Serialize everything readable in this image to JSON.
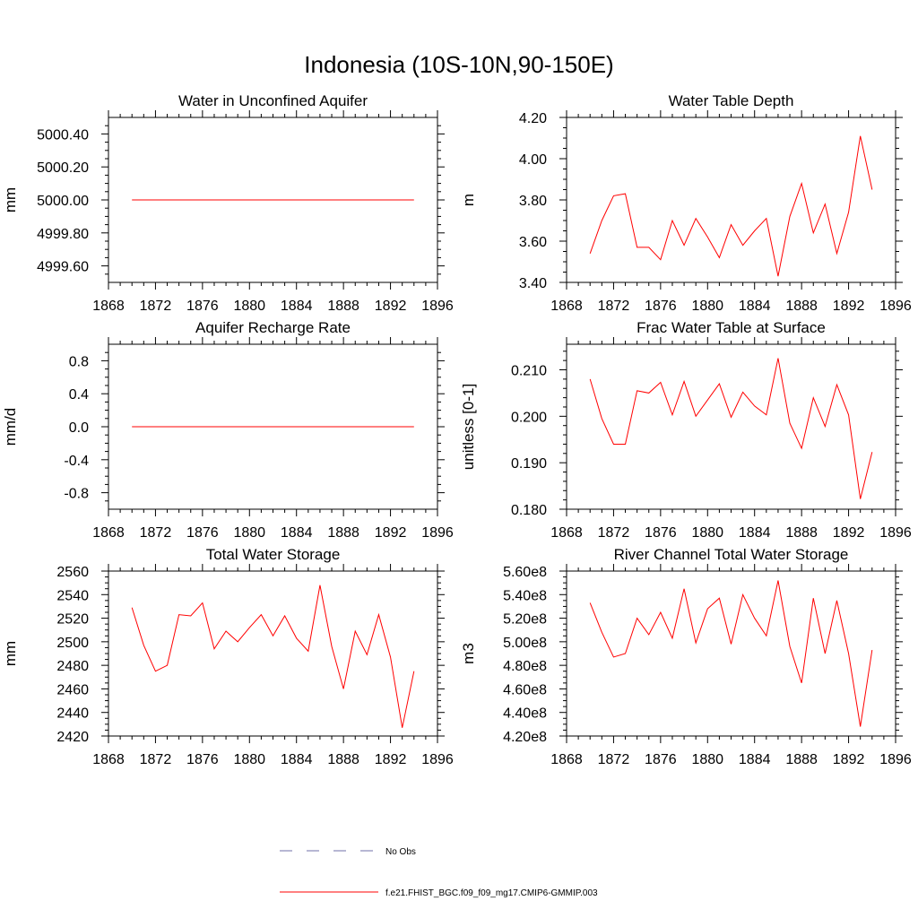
{
  "figure": {
    "title": "Indonesia (10S-10N,90-150E)",
    "series_color": "#ff0000",
    "obs_color": "#6f6fa8"
  },
  "legend": {
    "items": [
      {
        "label": "No Obs",
        "style": "dashed",
        "color": "#6f6fa8"
      },
      {
        "label": "f.e21.FHIST_BGC.f09_f09_mg17.CMIP6-GMMIP.003",
        "style": "solid",
        "color": "#ff0000"
      }
    ]
  },
  "chart_data": [
    {
      "type": "line",
      "title": "Water in Unconfined Aquifer",
      "ylabel": "mm",
      "xlim": [
        1868,
        1896
      ],
      "xticks": [
        1868,
        1872,
        1876,
        1880,
        1884,
        1888,
        1892,
        1896
      ],
      "xtick_labels": [
        "1868",
        "1872",
        "1876",
        "1880",
        "1884",
        "1888",
        "1892",
        "1896"
      ],
      "ylim": [
        4999.5,
        5000.5
      ],
      "yticks": [
        4999.6,
        4999.8,
        5000.0,
        5000.2,
        5000.4
      ],
      "ytick_labels": [
        "4999.60",
        "4999.80",
        "5000.00",
        "5000.20",
        "5000.40"
      ],
      "yminor": [
        4999.55,
        4999.65,
        4999.7,
        4999.75,
        4999.85,
        4999.9,
        4999.95,
        5000.05,
        5000.1,
        5000.15,
        5000.25,
        5000.3,
        5000.35,
        5000.45
      ],
      "x": [
        1870,
        1871,
        1872,
        1873,
        1874,
        1875,
        1876,
        1877,
        1878,
        1879,
        1880,
        1881,
        1882,
        1883,
        1884,
        1885,
        1886,
        1887,
        1888,
        1889,
        1890,
        1891,
        1892,
        1893,
        1894
      ],
      "series": [
        {
          "name": "f.e21.FHIST_BGC.f09_f09_mg17.CMIP6-GMMIP.003",
          "values": [
            5000,
            5000,
            5000,
            5000,
            5000,
            5000,
            5000,
            5000,
            5000,
            5000,
            5000,
            5000,
            5000,
            5000,
            5000,
            5000,
            5000,
            5000,
            5000,
            5000,
            5000,
            5000,
            5000,
            5000,
            5000
          ]
        }
      ]
    },
    {
      "type": "line",
      "title": "Water Table Depth",
      "ylabel": "m",
      "xlim": [
        1868,
        1896
      ],
      "xticks": [
        1868,
        1872,
        1876,
        1880,
        1884,
        1888,
        1892,
        1896
      ],
      "xtick_labels": [
        "1868",
        "1872",
        "1876",
        "1880",
        "1884",
        "1888",
        "1892",
        "1896"
      ],
      "ylim": [
        3.4,
        4.2
      ],
      "yticks": [
        3.4,
        3.6,
        3.8,
        4.0,
        4.2
      ],
      "ytick_labels": [
        "3.40",
        "3.60",
        "3.80",
        "4.00",
        "4.20"
      ],
      "yminor": [
        3.45,
        3.5,
        3.55,
        3.65,
        3.7,
        3.75,
        3.85,
        3.9,
        3.95,
        4.05,
        4.1,
        4.15
      ],
      "x": [
        1870,
        1871,
        1872,
        1873,
        1874,
        1875,
        1876,
        1877,
        1878,
        1879,
        1880,
        1881,
        1882,
        1883,
        1884,
        1885,
        1886,
        1887,
        1888,
        1889,
        1890,
        1891,
        1892,
        1893,
        1894
      ],
      "series": [
        {
          "name": "f.e21.FHIST_BGC.f09_f09_mg17.CMIP6-GMMIP.003",
          "values": [
            3.54,
            3.7,
            3.82,
            3.83,
            3.57,
            3.57,
            3.51,
            3.7,
            3.58,
            3.71,
            3.62,
            3.52,
            3.68,
            3.58,
            3.65,
            3.71,
            3.43,
            3.72,
            3.88,
            3.64,
            3.78,
            3.54,
            3.74,
            4.11,
            3.85
          ]
        }
      ]
    },
    {
      "type": "line",
      "title": "Aquifer Recharge Rate",
      "ylabel": "mm/d",
      "xlim": [
        1868,
        1896
      ],
      "xticks": [
        1868,
        1872,
        1876,
        1880,
        1884,
        1888,
        1892,
        1896
      ],
      "xtick_labels": [
        "1868",
        "1872",
        "1876",
        "1880",
        "1884",
        "1888",
        "1892",
        "1896"
      ],
      "ylim": [
        -1.0,
        1.0
      ],
      "yticks": [
        -0.8,
        -0.4,
        0.0,
        0.4,
        0.8
      ],
      "ytick_labels": [
        "-0.8",
        "-0.4",
        "0.0",
        "0.4",
        "0.8"
      ],
      "yminor": [
        -0.9,
        -0.7,
        -0.6,
        -0.5,
        -0.3,
        -0.2,
        -0.1,
        0.1,
        0.2,
        0.3,
        0.5,
        0.6,
        0.7,
        0.9
      ],
      "x": [
        1870,
        1871,
        1872,
        1873,
        1874,
        1875,
        1876,
        1877,
        1878,
        1879,
        1880,
        1881,
        1882,
        1883,
        1884,
        1885,
        1886,
        1887,
        1888,
        1889,
        1890,
        1891,
        1892,
        1893,
        1894
      ],
      "series": [
        {
          "name": "f.e21.FHIST_BGC.f09_f09_mg17.CMIP6-GMMIP.003",
          "values": [
            0,
            0,
            0,
            0,
            0,
            0,
            0,
            0,
            0,
            0,
            0,
            0,
            0,
            0,
            0,
            0,
            0,
            0,
            0,
            0,
            0,
            0,
            0,
            0,
            0
          ]
        }
      ]
    },
    {
      "type": "line",
      "title": "Frac Water Table at Surface",
      "ylabel": "unitless [0-1]",
      "xlim": [
        1868,
        1896
      ],
      "xticks": [
        1868,
        1872,
        1876,
        1880,
        1884,
        1888,
        1892,
        1896
      ],
      "xtick_labels": [
        "1868",
        "1872",
        "1876",
        "1880",
        "1884",
        "1888",
        "1892",
        "1896"
      ],
      "ylim": [
        0.18,
        0.2155
      ],
      "yticks": [
        0.18,
        0.19,
        0.2,
        0.21
      ],
      "ytick_labels": [
        "0.180",
        "0.190",
        "0.200",
        "0.210"
      ],
      "yminor": [
        0.182,
        0.184,
        0.186,
        0.188,
        0.192,
        0.194,
        0.196,
        0.198,
        0.202,
        0.204,
        0.206,
        0.208,
        0.212,
        0.214
      ],
      "x": [
        1870,
        1871,
        1872,
        1873,
        1874,
        1875,
        1876,
        1877,
        1878,
        1879,
        1880,
        1881,
        1882,
        1883,
        1884,
        1885,
        1886,
        1887,
        1888,
        1889,
        1890,
        1891,
        1892,
        1893,
        1894
      ],
      "series": [
        {
          "name": "f.e21.FHIST_BGC.f09_f09_mg17.CMIP6-GMMIP.003",
          "values": [
            0.208,
            0.1995,
            0.194,
            0.194,
            0.2055,
            0.205,
            0.2073,
            0.2003,
            0.2075,
            0.2,
            0.2035,
            0.207,
            0.1998,
            0.2052,
            0.2022,
            0.2003,
            0.2125,
            0.1985,
            0.1931,
            0.204,
            0.1978,
            0.2068,
            0.2003,
            0.1822,
            0.1923
          ]
        }
      ]
    },
    {
      "type": "line",
      "title": "Total Water Storage",
      "ylabel": "mm",
      "xlim": [
        1868,
        1896
      ],
      "xticks": [
        1868,
        1872,
        1876,
        1880,
        1884,
        1888,
        1892,
        1896
      ],
      "xtick_labels": [
        "1868",
        "1872",
        "1876",
        "1880",
        "1884",
        "1888",
        "1892",
        "1896"
      ],
      "ylim": [
        2420,
        2560
      ],
      "yticks": [
        2420,
        2440,
        2460,
        2480,
        2500,
        2520,
        2540,
        2560
      ],
      "ytick_labels": [
        "2420",
        "2440",
        "2460",
        "2480",
        "2500",
        "2520",
        "2540",
        "2560"
      ],
      "yminor": [
        2425,
        2430,
        2435,
        2445,
        2450,
        2455,
        2465,
        2470,
        2475,
        2485,
        2490,
        2495,
        2505,
        2510,
        2515,
        2525,
        2530,
        2535,
        2545,
        2550,
        2555
      ],
      "x": [
        1870,
        1871,
        1872,
        1873,
        1874,
        1875,
        1876,
        1877,
        1878,
        1879,
        1880,
        1881,
        1882,
        1883,
        1884,
        1885,
        1886,
        1887,
        1888,
        1889,
        1890,
        1891,
        1892,
        1893,
        1894
      ],
      "series": [
        {
          "name": "f.e21.FHIST_BGC.f09_f09_mg17.CMIP6-GMMIP.003",
          "values": [
            2529,
            2497,
            2475,
            2480,
            2523,
            2522,
            2533,
            2494,
            2509,
            2500,
            2512,
            2523,
            2505,
            2522,
            2503,
            2492,
            2548,
            2496,
            2460,
            2509,
            2489,
            2523,
            2487,
            2427,
            2475
          ]
        }
      ]
    },
    {
      "type": "line",
      "title": "River Channel Total Water Storage",
      "ylabel": "m3",
      "xlim": [
        1868,
        1896
      ],
      "xticks": [
        1868,
        1872,
        1876,
        1880,
        1884,
        1888,
        1892,
        1896
      ],
      "xtick_labels": [
        "1868",
        "1872",
        "1876",
        "1880",
        "1884",
        "1888",
        "1892",
        "1896"
      ],
      "ylim": [
        420000000,
        560000000
      ],
      "yticks": [
        420000000,
        440000000,
        460000000,
        480000000,
        500000000,
        520000000,
        540000000,
        560000000
      ],
      "ytick_labels": [
        "4.20e8",
        "4.40e8",
        "4.60e8",
        "4.80e8",
        "5.00e8",
        "5.20e8",
        "5.40e8",
        "5.60e8"
      ],
      "yminor": [
        425000000,
        430000000,
        435000000,
        445000000,
        450000000,
        455000000,
        465000000,
        470000000,
        475000000,
        485000000,
        490000000,
        495000000,
        505000000,
        510000000,
        515000000,
        525000000,
        530000000,
        535000000,
        545000000,
        550000000,
        555000000
      ],
      "x": [
        1870,
        1871,
        1872,
        1873,
        1874,
        1875,
        1876,
        1877,
        1878,
        1879,
        1880,
        1881,
        1882,
        1883,
        1884,
        1885,
        1886,
        1887,
        1888,
        1889,
        1890,
        1891,
        1892,
        1893,
        1894
      ],
      "series": [
        {
          "name": "f.e21.FHIST_BGC.f09_f09_mg17.CMIP6-GMMIP.003",
          "values": [
            533000000,
            508000000,
            487000000,
            490000000,
            520000000,
            506000000,
            525000000,
            503000000,
            545000000,
            499000000,
            528000000,
            537000000,
            498000000,
            540000000,
            520000000,
            505000000,
            552000000,
            496000000,
            465000000,
            537000000,
            490000000,
            535000000,
            490000000,
            428000000,
            493000000
          ]
        }
      ]
    }
  ]
}
